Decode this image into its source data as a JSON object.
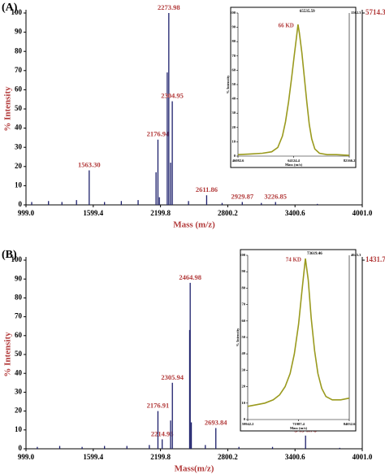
{
  "chart_data": [
    {
      "type": "spectrum",
      "panel_label": "(A)",
      "xlabel": "Mass (m/z)",
      "ylabel": "% Intensity",
      "xlim": [
        999,
        4001
      ],
      "xticks": [
        {
          "value": 999,
          "label": "999.0"
        },
        1599.4,
        2199.8,
        2800.2,
        3400.6,
        {
          "value": 4001,
          "label": "4001.0"
        }
      ],
      "ylim": [
        0,
        100
      ],
      "yticks": [
        0,
        10,
        20,
        30,
        40,
        50,
        60,
        70,
        80,
        90,
        100
      ],
      "y2lim": [
        0,
        5714.3
      ],
      "y2ticks": [
        5714.3
      ],
      "color": "#1c1f6b",
      "label_color": "#b23a3a",
      "peaks": {
        "x": [
          1050,
          1200,
          1320,
          1450,
          1563.3,
          1700,
          1850,
          2000,
          2160,
          2176.94,
          2190,
          2260,
          2273.98,
          2290,
          2304.95,
          2450,
          2611.86,
          2750,
          2929.87,
          3100,
          3226.85,
          3600
        ],
        "values": [
          1.5,
          2,
          1.5,
          2.5,
          18,
          1.5,
          2,
          2.5,
          17,
          34,
          4,
          69,
          100,
          22,
          54,
          2,
          5,
          1,
          1.5,
          1,
          1.5,
          0.5
        ],
        "labels": [
          null,
          null,
          null,
          null,
          "1563.30",
          null,
          null,
          null,
          null,
          "2176.94",
          null,
          null,
          "2273.98",
          null,
          "2304.95",
          null,
          "2611.86",
          null,
          "2929.87",
          null,
          "3226.85",
          null
        ]
      },
      "inset": {
        "type": "line",
        "annotation": "66 KD",
        "peak_label": "65535.59",
        "xlabel": "Mass (m/z)",
        "ylabel": "% Intensity",
        "xlim": [
          46082.6,
          82166.2
        ],
        "xticks": [
          {
            "value": 46082.6,
            "label": "46082.6"
          },
          {
            "value": 64124.4,
            "label": "64124.4"
          },
          {
            "value": 82166.2,
            "label": "82166.2"
          }
        ],
        "ylim": [
          0,
          100
        ],
        "yticks": [
          0,
          10,
          20,
          30,
          40,
          50,
          60,
          70,
          80,
          90,
          100
        ],
        "y2lim": [
          0,
          1562.3
        ],
        "y2ticks": [
          1562.3
        ],
        "color": "#9a9a1e",
        "x": [
          46082.6,
          50000,
          54000,
          57000,
          59000,
          60500,
          61500,
          62500,
          63500,
          64300,
          65000,
          65535.59,
          66000,
          66800,
          67600,
          68400,
          69200,
          70000,
          71000,
          72500,
          75000,
          78000,
          82166.2
        ],
        "values": [
          1,
          1.5,
          2,
          3,
          6,
          14,
          24,
          38,
          55,
          70,
          82,
          92,
          86,
          72,
          55,
          38,
          22,
          12,
          5,
          2,
          1,
          1,
          0.5
        ]
      }
    },
    {
      "type": "spectrum",
      "panel_label": "(B)",
      "xlabel": "Mass(m/z)",
      "ylabel": "% Intensity",
      "xlim": [
        999,
        4001
      ],
      "xticks": [
        {
          "value": 999,
          "label": "999.0"
        },
        1599.4,
        2199.8,
        2800.2,
        3400.6,
        {
          "value": 4001,
          "label": "4001.0"
        }
      ],
      "ylim": [
        0,
        100
      ],
      "yticks": [
        0,
        10,
        20,
        30,
        40,
        50,
        60,
        70,
        80,
        90,
        100
      ],
      "y2lim": [
        0,
        1431.7
      ],
      "y2ticks": [
        1431.7
      ],
      "color": "#1c1f6b",
      "label_color": "#b23a3a",
      "peaks": {
        "x": [
          1100,
          1300,
          1500,
          1700,
          1900,
          2100,
          2176.91,
          2214.96,
          2290,
          2305.94,
          2460,
          2464.98,
          2475,
          2600,
          2693.84,
          2900,
          3200,
          3494.78,
          3800
        ],
        "values": [
          1,
          1.5,
          1,
          1.5,
          1.5,
          2,
          20,
          5,
          15,
          35,
          63,
          88,
          14,
          2,
          11,
          1,
          1,
          7,
          0.5
        ],
        "labels": [
          null,
          null,
          null,
          null,
          null,
          null,
          "2176.91",
          "2214.96",
          null,
          "2305.94",
          null,
          "2464.98",
          null,
          null,
          "2693.84",
          null,
          null,
          "3494.78",
          null
        ]
      },
      "inset": {
        "type": "line",
        "annotation": "74 KD",
        "peak_label": "73619.46",
        "xlabel": "Mass (m/z)",
        "ylabel": "% Intensity",
        "xlim": [
          59942.2,
          84032.6
        ],
        "xticks": [
          {
            "value": 59942.2,
            "label": "59942.2"
          },
          {
            "value": 71987.4,
            "label": "71987.4"
          },
          {
            "value": 84032.6,
            "label": "84032.6"
          }
        ],
        "ylim": [
          0,
          100
        ],
        "yticks": [
          0,
          10,
          20,
          30,
          40,
          50,
          60,
          70,
          80,
          90,
          100
        ],
        "y2lim": [
          0,
          4045.3
        ],
        "y2ticks": [
          4045.3
        ],
        "color": "#9a9a1e",
        "x": [
          59942.2,
          62000,
          64000,
          66000,
          67500,
          68800,
          70000,
          71000,
          72000,
          72800,
          73619.46,
          74300,
          75000,
          75800,
          76600,
          77500,
          78500,
          80000,
          82000,
          84032.6
        ],
        "values": [
          8,
          9,
          10,
          12,
          15,
          20,
          28,
          40,
          58,
          78,
          98,
          85,
          62,
          42,
          28,
          19,
          14,
          12,
          12,
          13
        ]
      }
    }
  ]
}
